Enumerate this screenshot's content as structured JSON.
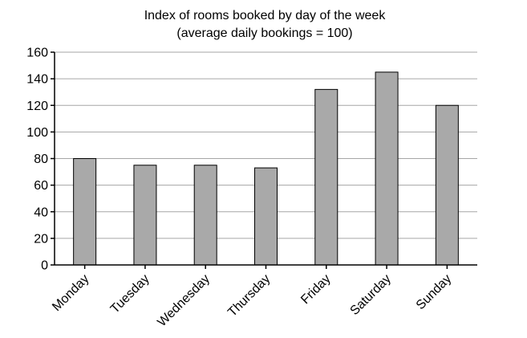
{
  "chart_data": {
    "type": "bar",
    "title": "Index of rooms booked by day of the week",
    "subtitle": "(average daily bookings = 100)",
    "xlabel": "",
    "ylabel": "",
    "categories": [
      "Monday",
      "Tuesday",
      "Wednesday",
      "Thursday",
      "Friday",
      "Saturday",
      "Sunday"
    ],
    "values": [
      80,
      75,
      75,
      73,
      132,
      145,
      120
    ],
    "ylim": [
      0,
      160
    ],
    "yticks": [
      "0",
      "20",
      "40",
      "60",
      "80",
      "100",
      "120",
      "140",
      "160"
    ],
    "grid": true,
    "legend": "none",
    "bar_color": "#a9a9a9"
  }
}
